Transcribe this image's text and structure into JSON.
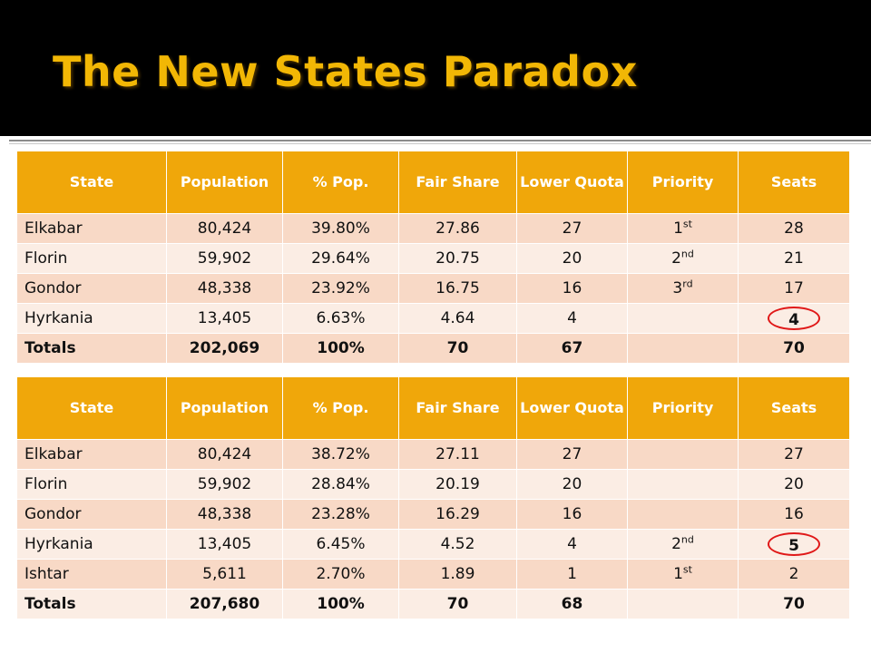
{
  "title": "The New States Paradox",
  "colors": {
    "title": "#f2b705",
    "header_bg": "#f0a70a",
    "row_odd": "#f8d9c6",
    "row_even": "#fbede4",
    "highlight_circle": "#e01818"
  },
  "headers": [
    "State",
    "Population",
    "% Pop.",
    "Fair Share",
    "Lower Quota",
    "Priority",
    "Seats"
  ],
  "table1": {
    "rows": [
      {
        "state": "Elkabar",
        "population": "80,424",
        "pct": "39.80%",
        "fair": "27.86",
        "lower": "27",
        "priority_num": "1",
        "priority_sup": "st",
        "seats": "28",
        "circled": false
      },
      {
        "state": "Florin",
        "population": "59,902",
        "pct": "29.64%",
        "fair": "20.75",
        "lower": "20",
        "priority_num": "2",
        "priority_sup": "nd",
        "seats": "21",
        "circled": false
      },
      {
        "state": "Gondor",
        "population": "48,338",
        "pct": "23.92%",
        "fair": "16.75",
        "lower": "16",
        "priority_num": "3",
        "priority_sup": "rd",
        "seats": "17",
        "circled": false
      },
      {
        "state": "Hyrkania",
        "population": "13,405",
        "pct": "6.63%",
        "fair": "4.64",
        "lower": "4",
        "priority_num": "",
        "priority_sup": "",
        "seats": "4",
        "circled": true
      }
    ],
    "totals": {
      "label": "Totals",
      "population": "202,069",
      "pct": "100%",
      "fair": "70",
      "lower": "67",
      "seats": "70"
    }
  },
  "table2": {
    "rows": [
      {
        "state": "Elkabar",
        "population": "80,424",
        "pct": "38.72%",
        "fair": "27.11",
        "lower": "27",
        "priority_num": "",
        "priority_sup": "",
        "seats": "27",
        "circled": false
      },
      {
        "state": "Florin",
        "population": "59,902",
        "pct": "28.84%",
        "fair": "20.19",
        "lower": "20",
        "priority_num": "",
        "priority_sup": "",
        "seats": "20",
        "circled": false
      },
      {
        "state": "Gondor",
        "population": "48,338",
        "pct": "23.28%",
        "fair": "16.29",
        "lower": "16",
        "priority_num": "",
        "priority_sup": "",
        "seats": "16",
        "circled": false
      },
      {
        "state": "Hyrkania",
        "population": "13,405",
        "pct": "6.45%",
        "fair": "4.52",
        "lower": "4",
        "priority_num": "2",
        "priority_sup": "nd",
        "seats": "5",
        "circled": true
      },
      {
        "state": "Ishtar",
        "population": "5,611",
        "pct": "2.70%",
        "fair": "1.89",
        "lower": "1",
        "priority_num": "1",
        "priority_sup": "st",
        "seats": "2",
        "circled": false
      }
    ],
    "totals": {
      "label": "Totals",
      "population": "207,680",
      "pct": "100%",
      "fair": "70",
      "lower": "68",
      "seats": "70"
    }
  }
}
